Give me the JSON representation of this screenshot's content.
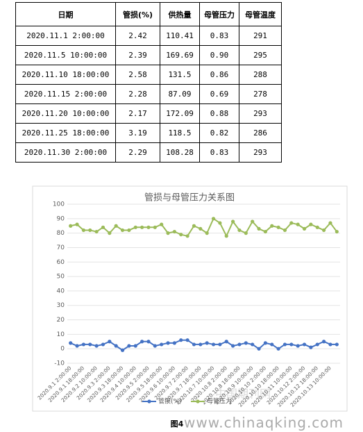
{
  "table": {
    "header": [
      "日期",
      "管损(%)",
      "供热量",
      "母管压力",
      "母管温度"
    ],
    "rows": [
      [
        "2020.11.1 2:00:00",
        "2.42",
        "110.41",
        "0.83",
        "291"
      ],
      [
        "2020.11.5 10:00:00",
        "2.39",
        "169.69",
        "0.90",
        "295"
      ],
      [
        "2020.11.10 18:00:00",
        "2.58",
        "131.5",
        "0.86",
        "288"
      ],
      [
        "2020.11.15 2:00:00",
        "2.28",
        "87.09",
        "0.69",
        "278"
      ],
      [
        "2020.11.20 10:00:00",
        "2.17",
        "172.09",
        "0.88",
        "293"
      ],
      [
        "2020.11.25 18:00:00",
        "3.19",
        "118.5",
        "0.82",
        "286"
      ],
      [
        "2020.11.30 2:00:00",
        "2.29",
        "108.28",
        "0.83",
        "293"
      ]
    ]
  },
  "chart_data": {
    "type": "line",
    "title": "管损与母管压力关系图",
    "categories": [
      "2020.9.1 2:00:00",
      null,
      "2020.9.1 18:00:00",
      null,
      "2020.9.2 10:00:00",
      null,
      "2020.9.3 2:00:00",
      null,
      "2020.9.3 18:00:00",
      null,
      "2020.9.4 10:00:00",
      null,
      "2020.9.5 2:00:00",
      null,
      "2020.9.5 18:00:00",
      null,
      "2020.9.6 10:00:00",
      null,
      "2020.9.7 2:00:00",
      null,
      "2020.9.7 18:00:00",
      null,
      "2020.10.7 10:00:00",
      null,
      "2020.10.8 2:00:00",
      null,
      "2020.10.8 18:00:00",
      null,
      "2020.10.9 10:00:00",
      null,
      "2020.10.10 2:00:00",
      null,
      "2020.10.10 18:00:00",
      null,
      "2020.10.11 10:00:00",
      null,
      "2020.10.12 2:00:00",
      null,
      "2020.10.12 18:00:00",
      null,
      "2020.10.13 10:00:00",
      null
    ],
    "series": [
      {
        "name": "管损(%)",
        "color": "#4472c4",
        "values": [
          4,
          2,
          3,
          3,
          2,
          3,
          5,
          2,
          -1,
          2,
          2,
          5,
          5,
          2,
          3,
          4,
          4,
          6,
          6,
          3,
          3,
          4,
          3,
          3,
          5,
          2,
          3,
          4,
          3,
          0,
          4,
          3,
          0,
          3,
          3,
          2,
          3,
          1,
          3,
          5,
          3,
          3
        ]
      },
      {
        "name": "母管压力",
        "color": "#9bbb59",
        "values": [
          85,
          86,
          82,
          82,
          81,
          84,
          80,
          85,
          82,
          82,
          84,
          84,
          84,
          84,
          86,
          80,
          81,
          79,
          78,
          85,
          83,
          80,
          90,
          87,
          78,
          88,
          82,
          80,
          88,
          83,
          81,
          85,
          84,
          82,
          87,
          86,
          83,
          86,
          84,
          82,
          87,
          81
        ]
      }
    ],
    "ylim": [
      -10,
      100
    ],
    "yticks": [
      -10,
      0,
      10,
      20,
      30,
      40,
      50,
      60,
      70,
      80,
      90,
      100
    ],
    "grid": true,
    "legend": "bottom"
  },
  "caption": "图4",
  "watermark": "www.chinaqking.com",
  "watermark_logo": "中国期刊网"
}
